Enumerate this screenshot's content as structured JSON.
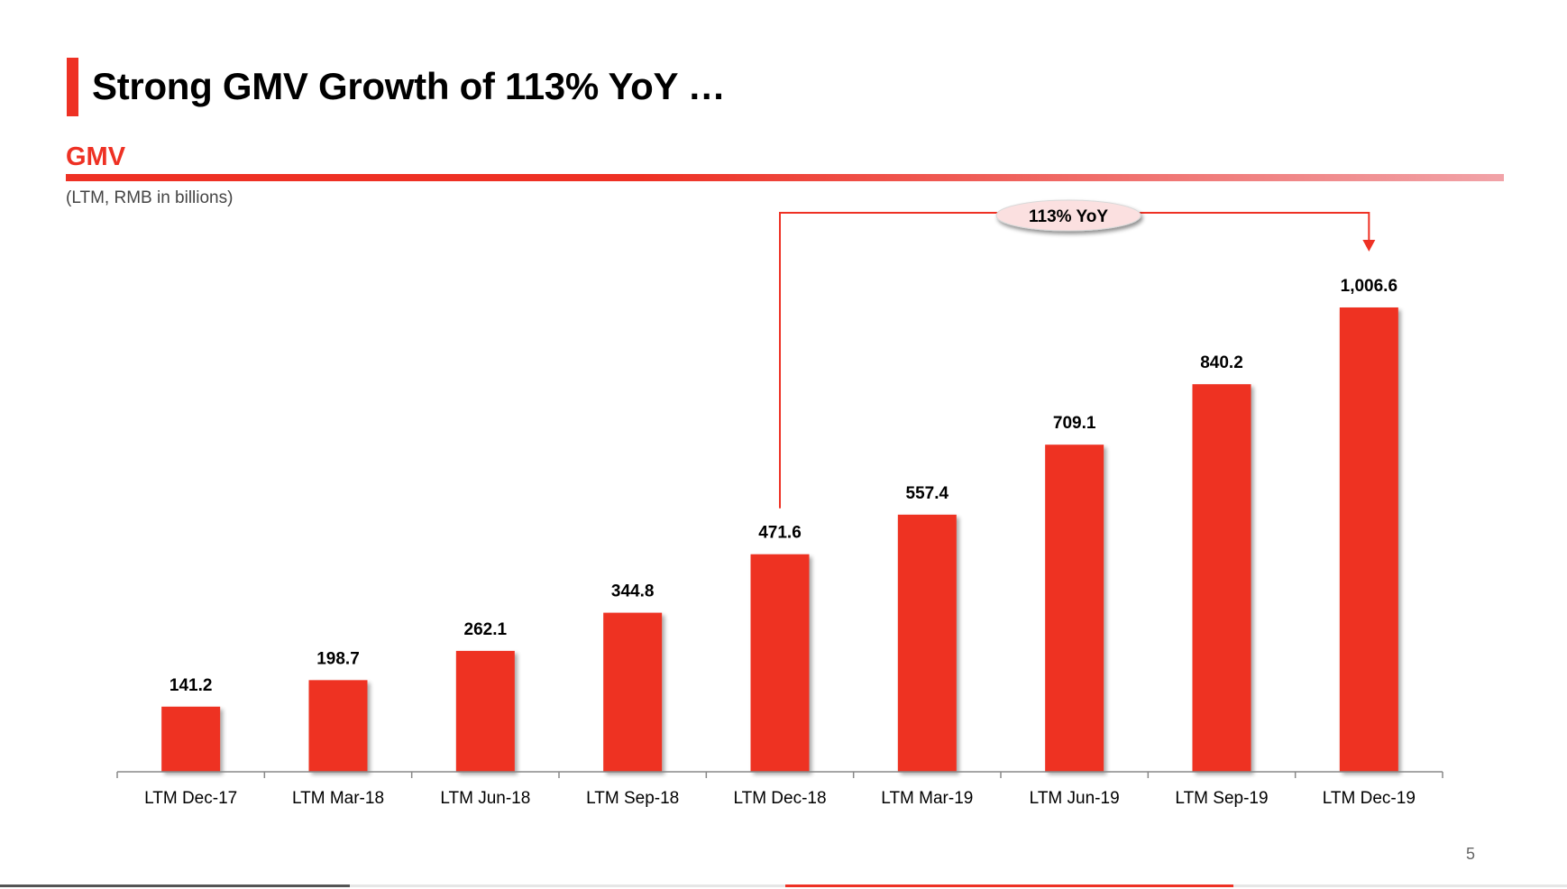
{
  "slide": {
    "title": "Strong GMV Growth of 113% YoY …",
    "section_label": "GMV",
    "subtitle": "(LTM, RMB in billions)",
    "page_number": "5"
  },
  "colors": {
    "accent": "#ee3124",
    "bar": "#ee3124",
    "axis": "#888888",
    "callout_fill": "#fbe0e0"
  },
  "chart_data": {
    "type": "bar",
    "title": "GMV",
    "subtitle": "(LTM, RMB in billions)",
    "xlabel": "",
    "ylabel": "",
    "ylim": [
      0,
      1006.6
    ],
    "grid": false,
    "categories": [
      "LTM Dec-17",
      "LTM Mar-18",
      "LTM Jun-18",
      "LTM Sep-18",
      "LTM Dec-18",
      "LTM Mar-19",
      "LTM Jun-19",
      "LTM Sep-19",
      "LTM Dec-19"
    ],
    "values": [
      141.2,
      198.7,
      262.1,
      344.8,
      471.6,
      557.4,
      709.1,
      840.2,
      1006.6
    ],
    "data_labels": [
      "141.2",
      "198.7",
      "262.1",
      "344.8",
      "471.6",
      "557.4",
      "709.1",
      "840.2",
      "1,006.6"
    ],
    "annotations": [
      {
        "text": "113% YoY",
        "from_category": "LTM Dec-18",
        "to_category": "LTM Dec-19"
      }
    ]
  }
}
